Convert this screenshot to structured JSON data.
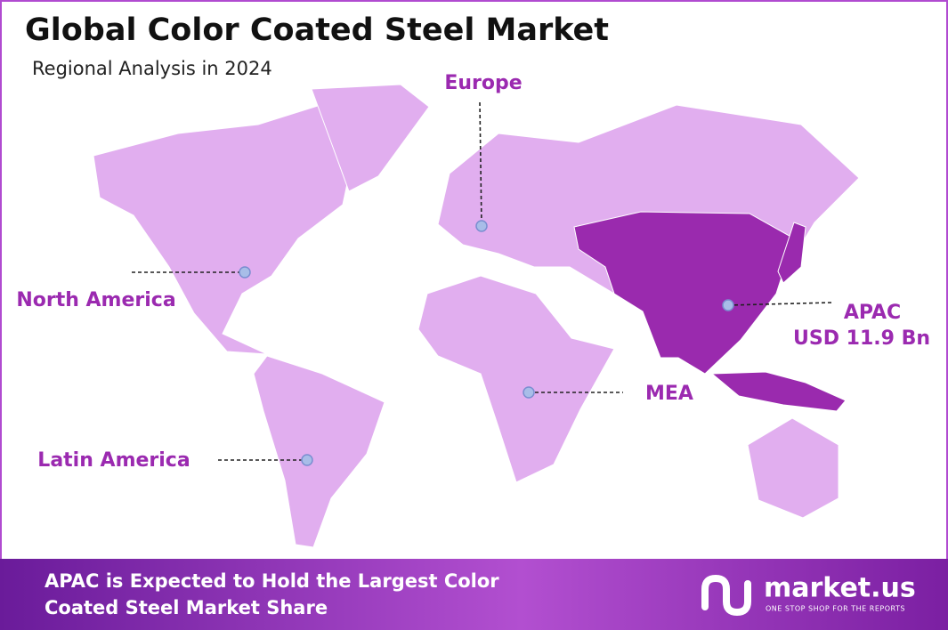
{
  "header": {
    "title": "Global Color Coated Steel Market",
    "subtitle": "Regional Analysis in 2024"
  },
  "regions": [
    {
      "name": "Europe"
    },
    {
      "name": "North America"
    },
    {
      "name": "APAC",
      "value": "USD 11.9 Bn"
    },
    {
      "name": "MEA"
    },
    {
      "name": "Latin America"
    }
  ],
  "footer": {
    "lines": [
      "APAC is Expected to Hold the Largest Color",
      "Coated Steel Market Share"
    ]
  },
  "brand": {
    "name": "market.us",
    "tagline": "ONE STOP SHOP FOR THE REPORTS"
  }
}
